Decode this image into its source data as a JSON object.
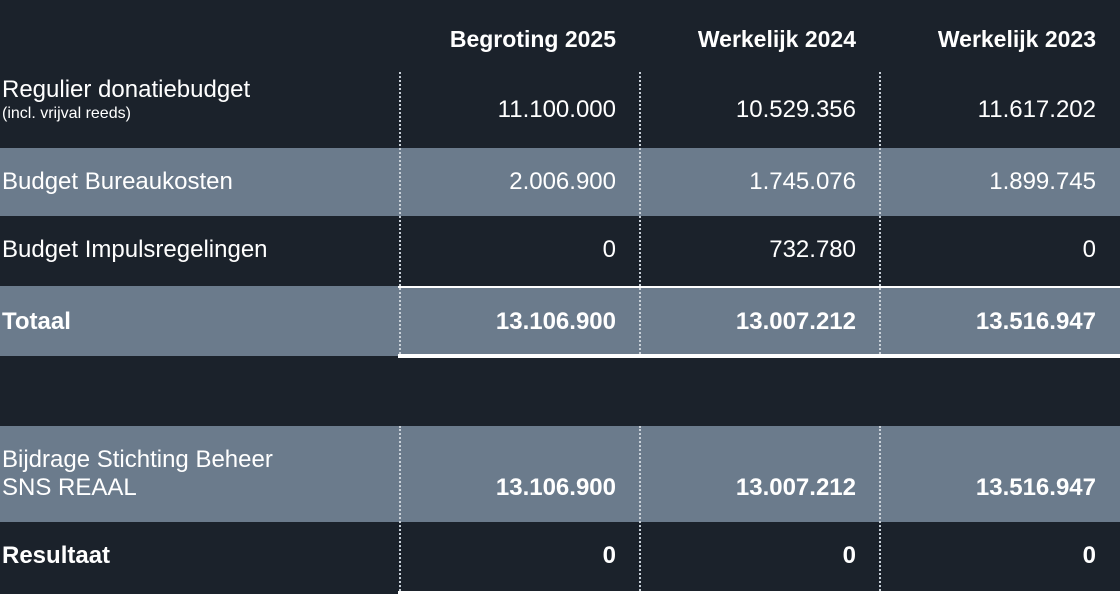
{
  "headers": [
    "Begroting 2025",
    "Werkelijk 2024",
    "Werkelijk 2023"
  ],
  "rows": [
    {
      "label": "Regulier donatiebudget",
      "sub": "(incl. vrijval reeds)",
      "values": [
        "11.100.000",
        "10.529.356",
        "11.617.202"
      ]
    },
    {
      "label": "Budget Bureaukosten",
      "values": [
        "2.006.900",
        "1.745.076",
        "1.899.745"
      ]
    },
    {
      "label": "Budget Impulsregelingen",
      "values": [
        "0",
        "732.780",
        "0"
      ]
    },
    {
      "label": "Totaal",
      "values": [
        "13.106.900",
        "13.007.212",
        "13.516.947"
      ]
    },
    {
      "label_line1": "Bijdrage Stichting Beheer",
      "label_line2": "SNS REAAL",
      "values": [
        "13.106.900",
        "13.007.212",
        "13.516.947"
      ]
    },
    {
      "label": "Resultaat",
      "values": [
        "0",
        "0",
        "0"
      ]
    }
  ]
}
